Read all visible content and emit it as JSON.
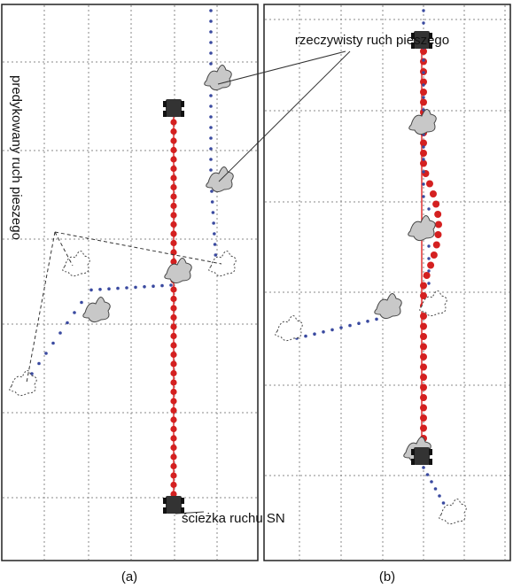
{
  "annotations": {
    "actual_motion": "rzeczywisty ruch pieszego",
    "predicted_motion": "predykowany ruch pieszego",
    "path": "ścieżka ruchu SN"
  },
  "panels": [
    {
      "caption": "(a)"
    },
    {
      "caption": "(b)"
    }
  ]
}
